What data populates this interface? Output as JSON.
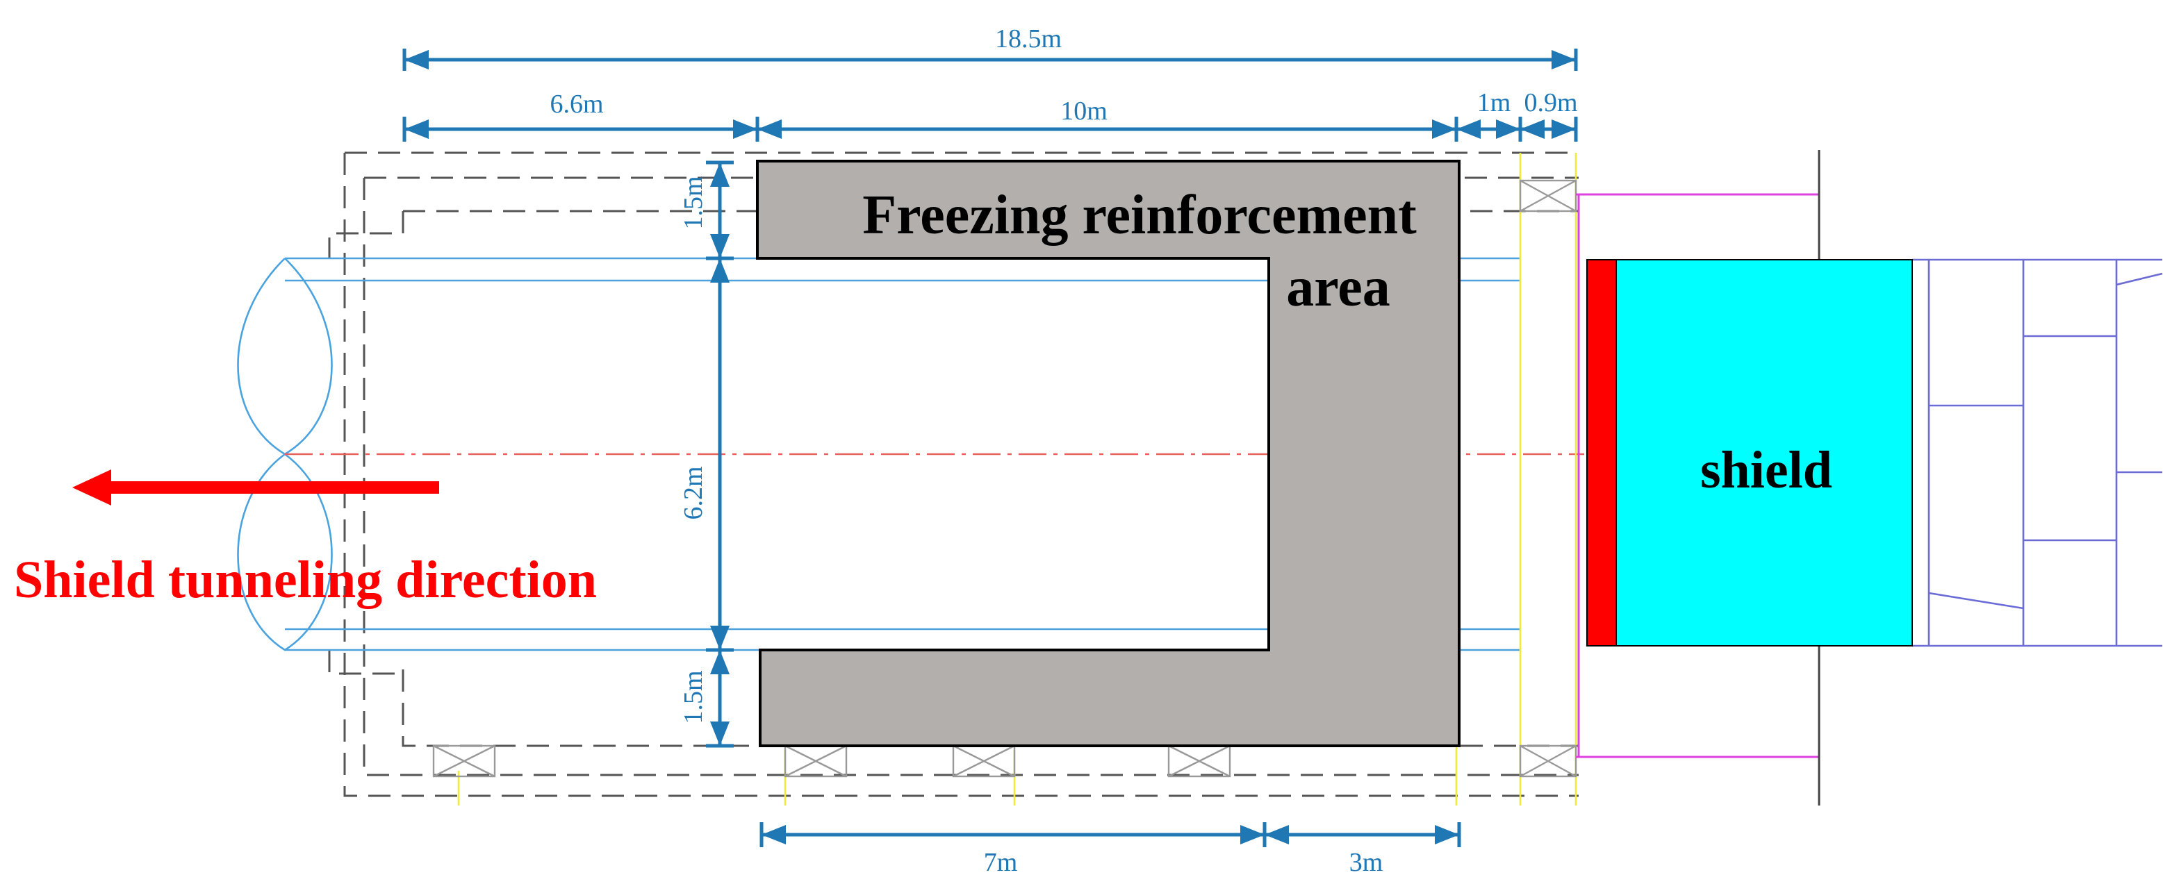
{
  "dimensions": {
    "total": "18.5m",
    "left": "6.6m",
    "middle": "10m",
    "small_a": "1m",
    "small_b": "0.9m",
    "top_thickness": "1.5m",
    "tunnel_height": "6.2m",
    "bottom_thickness": "1.5m",
    "bottom_left": "7m",
    "bottom_right": "3m"
  },
  "labels": {
    "freezing_area": [
      "Freezing reinforcement",
      "area"
    ],
    "shield": "shield",
    "direction": "Shield tunneling direction"
  }
}
